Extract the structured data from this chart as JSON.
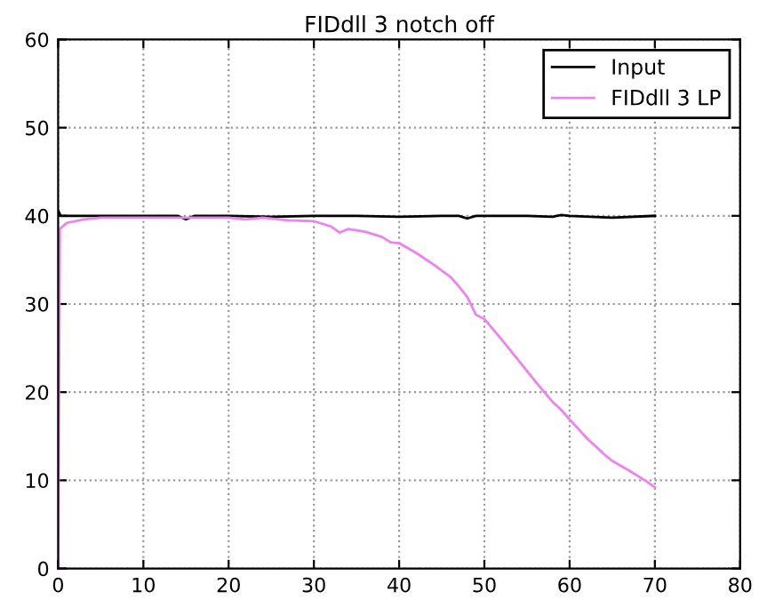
{
  "chart_data": {
    "type": "line",
    "title": "FIDdll 3 notch off",
    "xlim": [
      0,
      80
    ],
    "ylim": [
      0,
      60
    ],
    "xticks": [
      0,
      10,
      20,
      30,
      40,
      50,
      60,
      70,
      80
    ],
    "yticks": [
      0,
      10,
      20,
      30,
      40,
      50,
      60
    ],
    "grid": true,
    "legend": "top right",
    "marker": "none",
    "line_style": "solid",
    "series": [
      {
        "name": "Input",
        "color": "#000000",
        "x": [
          0,
          0.3,
          5,
          10,
          14,
          15,
          16,
          20,
          25,
          30,
          35,
          40,
          45,
          47,
          48,
          49,
          55,
          58,
          59,
          60,
          65,
          70
        ],
        "values": [
          40.6,
          40.0,
          40.0,
          40.0,
          40.0,
          39.6,
          40.0,
          40.0,
          39.9,
          40.0,
          40.0,
          39.9,
          40.0,
          40.0,
          39.7,
          40.0,
          40.0,
          39.9,
          40.1,
          40.0,
          39.8,
          40.0
        ]
      },
      {
        "name": "FIDdll 3 LP",
        "color": "#ee82ee",
        "x": [
          0,
          0.2,
          1,
          3,
          5,
          10,
          20,
          22,
          24,
          27,
          30,
          32,
          33,
          34,
          36,
          38,
          39,
          40,
          42,
          44,
          46,
          47,
          48,
          49,
          50,
          52,
          54,
          56,
          58,
          59,
          60,
          62,
          64,
          65,
          67,
          69,
          70
        ],
        "values": [
          0,
          38.5,
          39.2,
          39.6,
          39.8,
          39.8,
          39.8,
          39.6,
          39.8,
          39.5,
          39.4,
          38.8,
          38.1,
          38.5,
          38.2,
          37.6,
          37.0,
          36.9,
          35.8,
          34.5,
          33.1,
          32.0,
          30.8,
          28.8,
          28.3,
          26.0,
          23.6,
          21.2,
          18.9,
          18.0,
          16.9,
          14.8,
          13.0,
          12.2,
          11.1,
          9.9,
          9.2
        ]
      }
    ]
  }
}
